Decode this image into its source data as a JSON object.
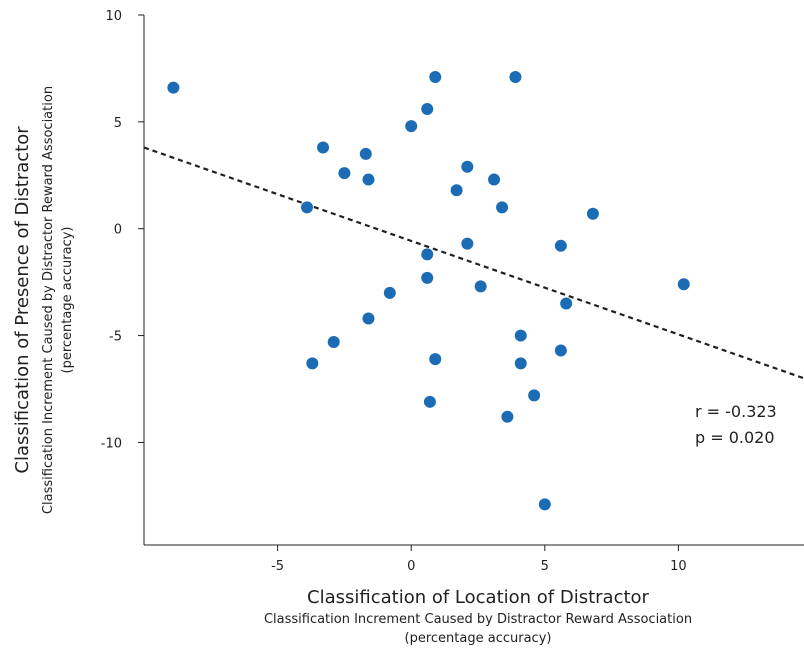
{
  "chart_data": {
    "type": "scatter",
    "xlabel": "Classification of Location of Distractor",
    "xlabel_sub": "Classification Increment Caused by Distractor Reward Association",
    "xlabel_unit": "(percentage accuracy)",
    "ylabel": "Classification of Presence of Distractor",
    "ylabel_sub": "Classification Increment Caused by  Distractor Reward Association",
    "ylabel_unit": "(percentage accuracy)",
    "xlim": [
      -10,
      14.7
    ],
    "ylim": [
      -14.8,
      10
    ],
    "xticks": [
      -5,
      0,
      5,
      10
    ],
    "yticks": [
      10,
      5,
      0,
      -5,
      -10
    ],
    "xtick_labels": [
      "-5",
      "0",
      "5",
      "10"
    ],
    "ytick_labels": [
      "10",
      "5",
      "0",
      "-5",
      "-10"
    ],
    "grid": false,
    "point_color": "#1c6cb5",
    "trendline": {
      "style": "dashed",
      "x": [
        -10,
        14.7
      ],
      "y": [
        3.8,
        -7.0
      ]
    },
    "annotations": [
      "r = -0.323",
      "p = 0.020"
    ],
    "x": [
      -8.9,
      0.9,
      3.9,
      0.6,
      0.0,
      -3.3,
      -1.7,
      -2.5,
      -1.6,
      2.1,
      3.1,
      1.7,
      3.4,
      -3.9,
      6.8,
      2.1,
      0.6,
      5.6,
      0.6,
      2.6,
      -0.8,
      5.8,
      -1.6,
      4.1,
      -2.9,
      5.6,
      -3.7,
      0.9,
      4.1,
      10.2,
      4.6,
      0.7,
      3.6,
      5.0
    ],
    "y": [
      6.6,
      7.1,
      7.1,
      5.6,
      4.8,
      3.8,
      3.5,
      2.6,
      2.3,
      2.9,
      2.3,
      1.8,
      1.0,
      1.0,
      0.7,
      -0.7,
      -1.2,
      -0.8,
      -2.3,
      -2.7,
      -3.0,
      -3.5,
      -4.2,
      -5.0,
      -5.3,
      -5.7,
      -6.3,
      -6.1,
      -6.3,
      -2.6,
      -7.8,
      -8.1,
      -8.8,
      -12.9
    ]
  }
}
